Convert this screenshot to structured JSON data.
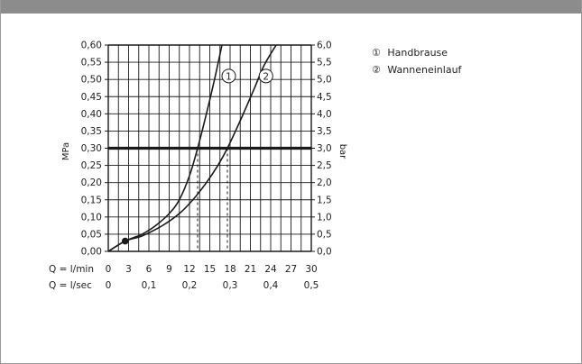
{
  "colors": {
    "header_bar": "#8c8c8c",
    "line": "#1a1a1a",
    "grid": "#1a1a1a",
    "frame": "#9a9a9a"
  },
  "chart_data": {
    "type": "line",
    "title": "",
    "ylabel_left": "MPa",
    "ylabel_right": "bar",
    "xlabel_rows": [
      "Q = l/min",
      "Q = l/sec"
    ],
    "x_lmin_ticks": [
      "0",
      "3",
      "6",
      "9",
      "12",
      "15",
      "18",
      "21",
      "24",
      "27",
      "30"
    ],
    "x_lsec_ticks": [
      "0",
      "0,1",
      "0,2",
      "0,3",
      "0,4",
      "0,5"
    ],
    "y_mpa_ticks": [
      "0,00",
      "0,05",
      "0,10",
      "0,15",
      "0,20",
      "0,25",
      "0,30",
      "0,35",
      "0,40",
      "0,45",
      "0,50",
      "0,55",
      "0,60"
    ],
    "y_bar_ticks": [
      "0,0",
      "0,5",
      "1,0",
      "1,5",
      "2,0",
      "2,5",
      "3,0",
      "3,5",
      "4,0",
      "4,5",
      "5,0",
      "5,5",
      "6,0"
    ],
    "xlim": [
      0,
      30
    ],
    "ylim": [
      0,
      0.6
    ],
    "reference_line": 0.3,
    "start_point": [
      2.5,
      0.03
    ],
    "series": [
      {
        "name": "Handbrause",
        "marker": "1",
        "label_at": [
          17.8,
          0.51
        ],
        "points": [
          [
            0,
            0
          ],
          [
            2.5,
            0.03
          ],
          [
            5,
            0.05
          ],
          [
            7,
            0.075
          ],
          [
            9,
            0.11
          ],
          [
            10.5,
            0.15
          ],
          [
            12,
            0.22
          ],
          [
            13.2,
            0.3
          ],
          [
            14.5,
            0.4
          ],
          [
            15.7,
            0.5
          ],
          [
            16.8,
            0.6
          ]
        ],
        "drop_x": 13.2
      },
      {
        "name": "Wanneneinlauf",
        "marker": "2",
        "label_at": [
          23.3,
          0.51
        ],
        "points": [
          [
            0,
            0
          ],
          [
            2.5,
            0.03
          ],
          [
            5,
            0.045
          ],
          [
            8,
            0.075
          ],
          [
            10.5,
            0.11
          ],
          [
            12.5,
            0.15
          ],
          [
            14.5,
            0.2
          ],
          [
            16.2,
            0.25
          ],
          [
            17.6,
            0.3
          ],
          [
            19.5,
            0.38
          ],
          [
            21.5,
            0.47
          ],
          [
            23,
            0.54
          ],
          [
            24.8,
            0.6
          ]
        ],
        "drop_x": 17.6
      }
    ],
    "legend": [
      {
        "marker": "①",
        "label": "Handbrause"
      },
      {
        "marker": "②",
        "label": "Wanneneinlauf"
      }
    ],
    "legend_placement": "top-right",
    "grid": true
  }
}
